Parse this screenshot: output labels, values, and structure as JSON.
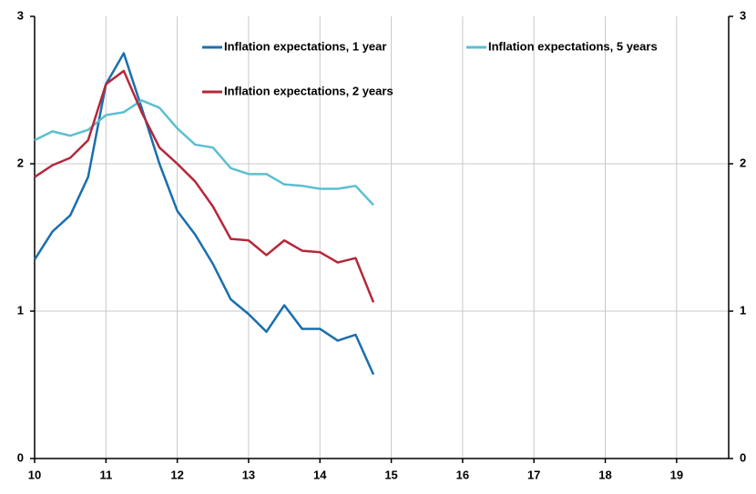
{
  "chart_data": {
    "type": "line",
    "x": [
      10,
      10.25,
      10.5,
      10.75,
      11,
      11.25,
      11.5,
      11.75,
      12,
      12.25,
      12.5,
      12.75,
      13,
      13.25,
      13.5,
      13.75,
      14,
      14.25,
      14.5,
      14.75
    ],
    "series": [
      {
        "name": "Inflation expectations, 1 year",
        "color": "#1a6fae",
        "values": [
          1.35,
          1.54,
          1.65,
          1.91,
          2.54,
          2.75,
          2.38,
          2.0,
          1.68,
          1.52,
          1.32,
          1.08,
          0.98,
          0.86,
          1.04,
          0.88,
          0.88,
          0.8,
          0.84,
          0.57
        ]
      },
      {
        "name": "Inflation expectations, 5 years",
        "color": "#5bbfd0",
        "values": [
          2.16,
          2.22,
          2.19,
          2.23,
          2.33,
          2.35,
          2.43,
          2.38,
          2.24,
          2.13,
          2.11,
          1.97,
          1.93,
          1.93,
          1.86,
          1.85,
          1.83,
          1.83,
          1.85,
          1.72
        ]
      },
      {
        "name": "Inflation expectations, 2 years",
        "color": "#b5273a",
        "values": [
          1.91,
          1.99,
          2.04,
          2.16,
          2.54,
          2.63,
          2.35,
          2.11,
          2.0,
          1.88,
          1.71,
          1.49,
          1.48,
          1.38,
          1.48,
          1.41,
          1.4,
          1.33,
          1.36,
          1.06
        ]
      }
    ],
    "xlim": [
      10,
      19.73
    ],
    "xticks": [
      10,
      11,
      12,
      13,
      14,
      15,
      16,
      17,
      18,
      19
    ],
    "ylim": [
      0,
      3
    ],
    "yticks": [
      0,
      1,
      2,
      3
    ],
    "y2lim": [
      0,
      3
    ],
    "y2ticks": [
      0,
      1,
      2,
      3
    ],
    "grid": true
  }
}
